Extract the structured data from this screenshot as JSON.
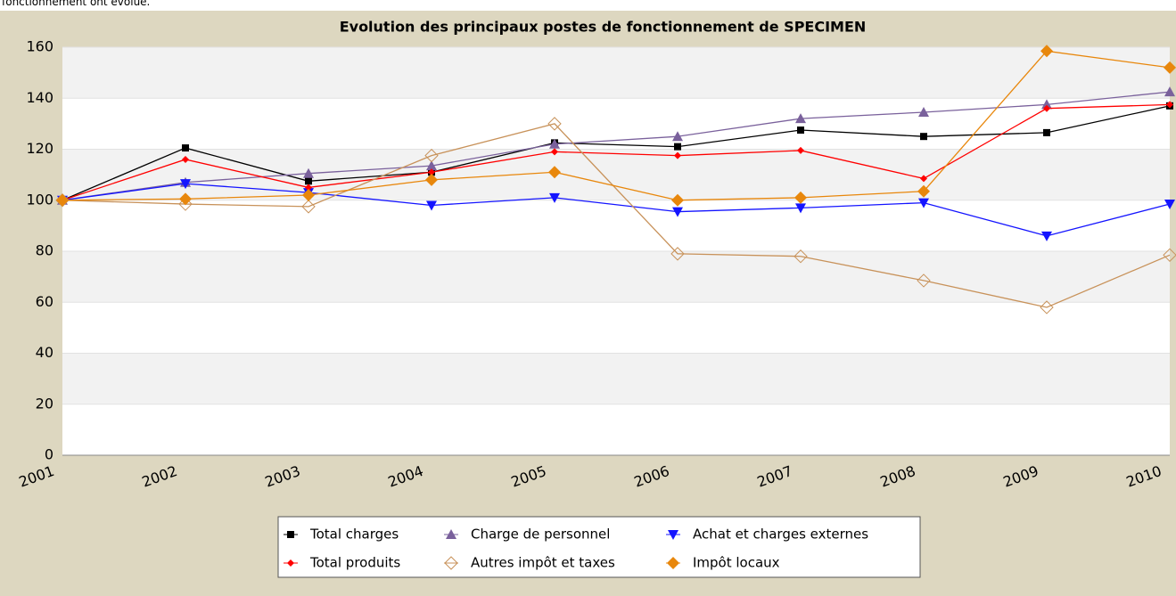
{
  "header": {
    "text": "fonctionnement ont évolué."
  },
  "chart_data": {
    "type": "line",
    "title": "Evolution des principaux postes de fonctionnement de SPECIMEN",
    "categories": [
      "2001",
      "2002",
      "2003",
      "2004",
      "2005",
      "2006",
      "2007",
      "2008",
      "2009",
      "2010"
    ],
    "ylim": [
      0,
      160
    ],
    "yticks": [
      0,
      20,
      40,
      60,
      80,
      100,
      120,
      140,
      160
    ],
    "grid": true,
    "series": [
      {
        "name": "Total charges",
        "color": "#000000",
        "marker": "square",
        "values": [
          100,
          120.5,
          107.5,
          111,
          122.5,
          121,
          127.5,
          125,
          126.5,
          137
        ]
      },
      {
        "name": "Charge de personnel",
        "color": "#7a619c",
        "marker": "triangle",
        "values": [
          100,
          107,
          110.5,
          113.5,
          122,
          125,
          132,
          134.5,
          137.5,
          142.5
        ]
      },
      {
        "name": "Achat et charges externes",
        "color": "#1414ff",
        "marker": "triangle-down",
        "values": [
          100,
          106.5,
          103,
          98,
          101,
          95.5,
          97,
          99,
          86,
          98.5
        ]
      },
      {
        "name": "Total produits",
        "color": "#ff0000",
        "marker": "diamond-small",
        "values": [
          100,
          116,
          105,
          111,
          119,
          117.5,
          119.5,
          108.5,
          136,
          137.5
        ]
      },
      {
        "name": "Autres impôt et taxes",
        "color": "#c8925a",
        "marker": "diamond-open",
        "values": [
          100,
          98.5,
          97.5,
          117.5,
          130,
          79,
          78,
          68.5,
          58,
          78.5
        ]
      },
      {
        "name": "Impôt locaux",
        "color": "#e8870c",
        "marker": "diamond",
        "values": [
          100,
          100.5,
          102,
          108,
          111,
          100,
          101,
          103.5,
          158.5,
          152
        ]
      }
    ]
  }
}
